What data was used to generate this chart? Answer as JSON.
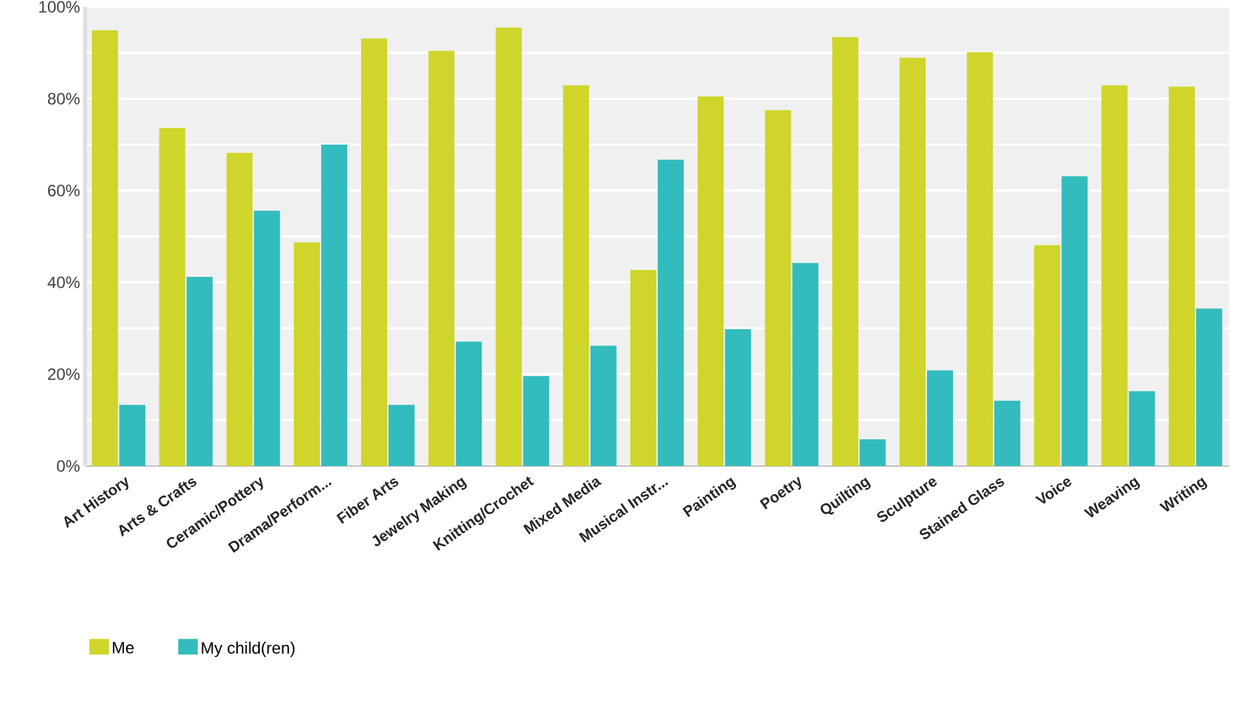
{
  "chart_data": {
    "type": "bar",
    "categories": [
      "Art History",
      "Arts & Crafts",
      "Ceramic/Pottery",
      "Drama/Perform...",
      "Fiber Arts",
      "Jewelry Making",
      "Knitting/Crochet",
      "Mixed Media",
      "Musical Instr...",
      "Painting",
      "Poetry",
      "Quilting",
      "Sculpture",
      "Stained Glass",
      "Voice",
      "Weaving",
      "Writing"
    ],
    "series": [
      {
        "name": "Me",
        "color": "#cfd52a",
        "values": [
          94.9,
          73.6,
          68.2,
          48.7,
          93.1,
          90.4,
          95.5,
          82.9,
          42.7,
          80.5,
          77.5,
          93.4,
          88.9,
          90.1,
          48.1,
          82.9,
          82.6
        ]
      },
      {
        "name": "My child(ren)",
        "color": "#33bcbd",
        "values": [
          13.3,
          41.2,
          55.6,
          70.0,
          13.3,
          27.1,
          19.6,
          26.2,
          66.7,
          29.8,
          44.2,
          5.8,
          20.8,
          14.2,
          63.1,
          16.3,
          34.3
        ]
      }
    ],
    "ylim": [
      0,
      100
    ],
    "yticks": [
      {
        "value": 0,
        "label": "0%"
      },
      {
        "value": 10,
        "label": null
      },
      {
        "value": 20,
        "label": "20%"
      },
      {
        "value": 30,
        "label": null
      },
      {
        "value": 40,
        "label": "40%"
      },
      {
        "value": 50,
        "label": null
      },
      {
        "value": 60,
        "label": "60%"
      },
      {
        "value": 70,
        "label": null
      },
      {
        "value": 80,
        "label": "80%"
      },
      {
        "value": 90,
        "label": null
      },
      {
        "value": 100,
        "label": "100%"
      }
    ],
    "grid": "y",
    "legend": "bottom left"
  }
}
